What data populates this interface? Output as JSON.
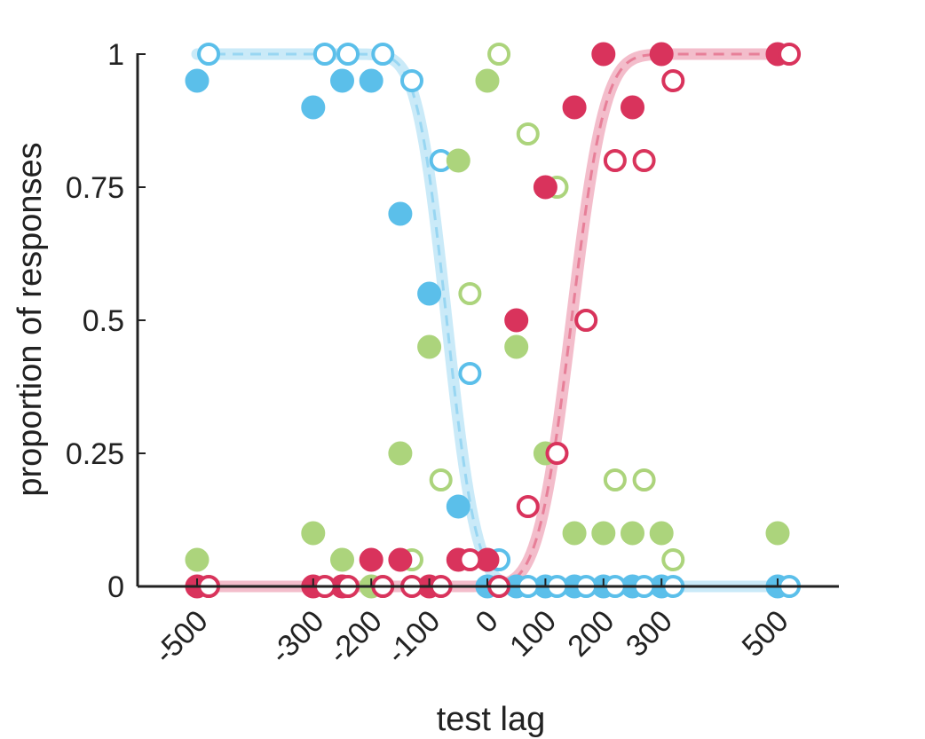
{
  "chart_data": {
    "type": "scatter",
    "title": "",
    "xlabel": "test lag",
    "ylabel": "proportion of responses",
    "xlim": [
      -540,
      540
    ],
    "ylim": [
      0,
      1
    ],
    "grid": false,
    "x_tick_values": [
      -500,
      -300,
      -200,
      -100,
      0,
      100,
      200,
      300,
      500
    ],
    "x_tick_labels": [
      "-500",
      "-300",
      "-200",
      "-100",
      "0",
      "100",
      "200",
      "300",
      "500"
    ],
    "y_tick_values": [
      0,
      0.25,
      0.5,
      0.75,
      1
    ],
    "y_tick_labels": [
      "0",
      "0.25",
      "0.5",
      "0.75",
      "1"
    ],
    "colors": {
      "blue": "#5bbfea",
      "green": "#acd47c",
      "red": "#d9335c",
      "axis": "#222222"
    },
    "series": [
      {
        "color": "blue",
        "marker": "filled",
        "x": [
          -500,
          -300,
          -250,
          -200,
          -150,
          -100,
          -50,
          0,
          50,
          100,
          150,
          200,
          250,
          300,
          500
        ],
        "y": [
          0.95,
          0.9,
          0.95,
          0.95,
          0.7,
          0.55,
          0.15,
          0,
          0,
          0,
          0,
          0,
          0,
          0,
          0
        ]
      },
      {
        "color": "blue",
        "marker": "open",
        "x": [
          -480,
          -280,
          -240,
          -180,
          -130,
          -80,
          -30,
          20,
          70,
          120,
          170,
          220,
          270,
          320,
          520
        ],
        "y": [
          1,
          1,
          1,
          1,
          0.95,
          0.8,
          0.4,
          0.05,
          0,
          0,
          0,
          0,
          0,
          0,
          0
        ]
      },
      {
        "color": "green",
        "marker": "filled",
        "x": [
          -500,
          -300,
          -250,
          -200,
          -150,
          -100,
          -50,
          0,
          50,
          100,
          150,
          200,
          250,
          300,
          500
        ],
        "y": [
          0.05,
          0.1,
          0.05,
          0,
          0.25,
          0.45,
          0.8,
          0.95,
          0.45,
          0.25,
          0.1,
          0.1,
          0.1,
          0.1,
          0.1
        ]
      },
      {
        "color": "green",
        "marker": "open",
        "x": [
          -480,
          -280,
          -240,
          -180,
          -130,
          -80,
          -30,
          20,
          70,
          120,
          170,
          220,
          270,
          320
        ],
        "y": [
          0,
          0,
          0,
          0,
          0.05,
          0.2,
          0.55,
          1,
          0.85,
          0.75,
          0.5,
          0.2,
          0.2,
          0.05
        ]
      },
      {
        "color": "red",
        "marker": "filled",
        "x": [
          -500,
          -300,
          -250,
          -200,
          -150,
          -100,
          -50,
          0,
          50,
          100,
          150,
          200,
          250,
          300,
          500
        ],
        "y": [
          0,
          0,
          0,
          0.05,
          0.05,
          0,
          0.05,
          0.05,
          0.5,
          0.75,
          0.9,
          1,
          0.9,
          1,
          1
        ]
      },
      {
        "color": "red",
        "marker": "open",
        "x": [
          -480,
          -280,
          -240,
          -180,
          -130,
          -80,
          -30,
          20,
          70,
          120,
          170,
          220,
          270,
          320,
          520
        ],
        "y": [
          0,
          0,
          0,
          0,
          0,
          0,
          0.05,
          0,
          0.15,
          0.25,
          0.5,
          0.8,
          0.8,
          0.95,
          1
        ]
      }
    ],
    "fits": [
      {
        "color": "blue",
        "mu": -70,
        "sigma": 40,
        "direction": "descending"
      },
      {
        "color": "red",
        "mu": 145,
        "sigma": 45,
        "direction": "ascending"
      }
    ]
  }
}
